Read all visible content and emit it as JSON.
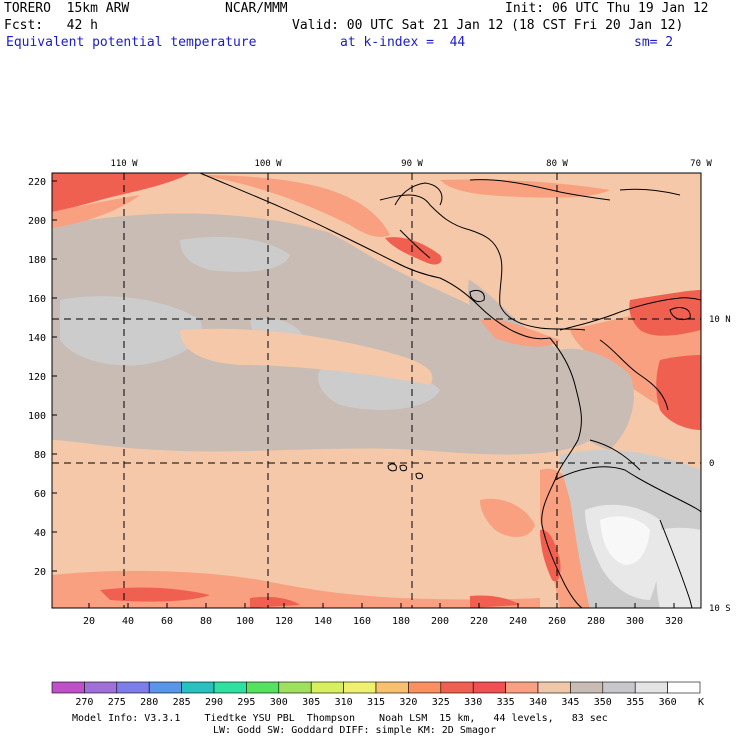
{
  "header": {
    "model": "TORERO  15km ARW",
    "center": "NCAR/MMM",
    "init": "Init: 06 UTC Thu 19 Jan 12",
    "fcst": "Fcst:   42 h",
    "valid": "Valid: 00 UTC Sat 21 Jan 12 (18 CST Fri 20 Jan 12)",
    "field": "Equivalent potential temperature",
    "level": "at k-index =  44",
    "smooth": "sm= 2"
  },
  "axes": {
    "top_lon_labels": [
      "110 W",
      "100 W",
      "90 W",
      "80 W",
      "70 W"
    ],
    "right_lat_labels": [
      "10 N",
      "0",
      "10 S"
    ],
    "left_ticks": [
      "220",
      "200",
      "180",
      "160",
      "140",
      "120",
      "100",
      "80",
      "60",
      "40",
      "20"
    ],
    "bottom_ticks": [
      "20",
      "40",
      "60",
      "80",
      "100",
      "120",
      "140",
      "160",
      "180",
      "200",
      "220",
      "240",
      "260",
      "280",
      "300",
      "320"
    ]
  },
  "legend": {
    "labels": [
      "270",
      "275",
      "280",
      "285",
      "290",
      "295",
      "300",
      "305",
      "310",
      "315",
      "320",
      "325",
      "330",
      "335",
      "340",
      "345",
      "350",
      "355",
      "360"
    ],
    "unit": "K",
    "colors": [
      "#c050c8",
      "#a070d8",
      "#7e7ee8",
      "#5a96e8",
      "#28c0c0",
      "#30e0a0",
      "#58e060",
      "#a0e060",
      "#d8f060",
      "#f0f070",
      "#f8c070",
      "#f89060",
      "#f06050",
      "#f05050",
      "#f8a080",
      "#f0c8a8",
      "#c8bcb4",
      "#c8c8cc",
      "#e4e4e4",
      "#ffffff"
    ]
  },
  "map": {
    "dominant_colors": {
      "sea_warm": "#f4c8a8",
      "sea_mid": "#c8bcb4",
      "sea_cool": "#cccccc",
      "hot": "#f06050",
      "warm": "#f8a080",
      "andes": "#e8e8e8"
    }
  },
  "footer": {
    "line1": "Model Info: V3.3.1    Tiedtke YSU PBL  Thompson    Noah LSM  15 km,   44 levels,   83 sec",
    "line2": "LW: Godd SW: Goddard DIFF: simple KM: 2D Smagor"
  }
}
